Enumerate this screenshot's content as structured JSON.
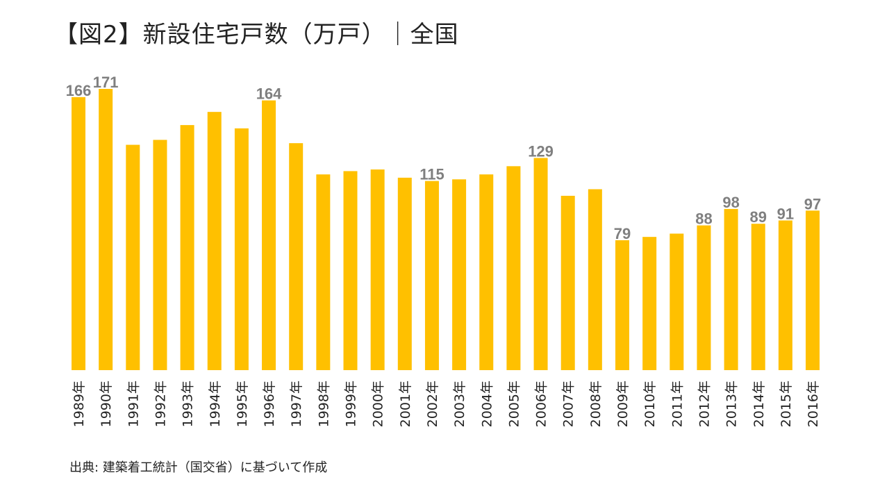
{
  "title": "【図2】新設住宅戸数（万戸）｜全国",
  "source": "出典: 建築着工統計（国交省）に基づいて作成",
  "colors": {
    "bar": "#FFC000",
    "value_label": "#7F7F7F",
    "text": "#222222"
  },
  "chart_data": {
    "type": "bar",
    "title": "【図2】新設住宅戸数（万戸）｜全国",
    "xlabel": "",
    "ylabel": "",
    "ylim": [
      0,
      171
    ],
    "grid": false,
    "legend": "none",
    "categories": [
      "1989年",
      "1990年",
      "1991年",
      "1992年",
      "1993年",
      "1994年",
      "1995年",
      "1996年",
      "1997年",
      "1998年",
      "1999年",
      "2000年",
      "2001年",
      "2002年",
      "2003年",
      "2004年",
      "2005年",
      "2006年",
      "2007年",
      "2008年",
      "2009年",
      "2010年",
      "2011年",
      "2012年",
      "2013年",
      "2014年",
      "2015年",
      "2016年"
    ],
    "values": [
      166,
      171,
      137,
      140,
      149,
      157,
      147,
      164,
      138,
      119,
      121,
      122,
      117,
      115,
      116,
      119,
      124,
      129,
      106,
      110,
      79,
      81,
      83,
      88,
      98,
      89,
      91,
      97
    ],
    "data_labels": [
      {
        "index": 0,
        "text": "166"
      },
      {
        "index": 1,
        "text": "171"
      },
      {
        "index": 7,
        "text": "164"
      },
      {
        "index": 13,
        "text": "115"
      },
      {
        "index": 17,
        "text": "129"
      },
      {
        "index": 20,
        "text": "79"
      },
      {
        "index": 23,
        "text": "88"
      },
      {
        "index": 24,
        "text": "98"
      },
      {
        "index": 25,
        "text": "89"
      },
      {
        "index": 26,
        "text": "91"
      },
      {
        "index": 27,
        "text": "97"
      }
    ]
  }
}
